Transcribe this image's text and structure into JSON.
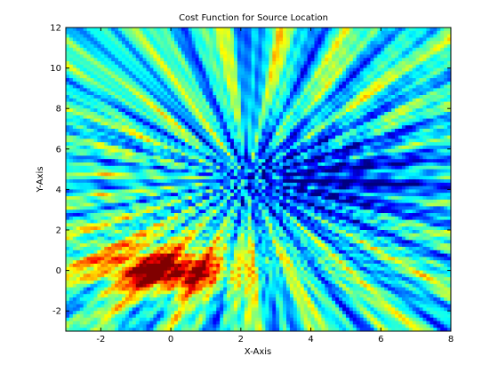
{
  "chart_data": {
    "type": "heatmap",
    "title": "Cost Function for Source Location",
    "xlabel": "X-Axis",
    "ylabel": "Y-Axis",
    "xlim": [
      -3,
      8
    ],
    "ylim": [
      -3,
      12
    ],
    "xticks": [
      -2,
      0,
      2,
      4,
      6,
      8
    ],
    "yticks": [
      -2,
      0,
      2,
      4,
      6,
      8,
      10,
      12
    ],
    "xtick_labels": [
      "-2",
      "0",
      "2",
      "4",
      "6",
      "8"
    ],
    "ytick_labels": [
      "-2",
      "0",
      "2",
      "4",
      "6",
      "8",
      "10",
      "12"
    ],
    "colormap": "jet",
    "grid": false,
    "legend": false,
    "min_region": {
      "x": 4.5,
      "y": 4.5,
      "level": "low (dark blue)"
    },
    "max_region": {
      "x": 0.5,
      "y": 0.2,
      "level": "high (red)"
    }
  }
}
